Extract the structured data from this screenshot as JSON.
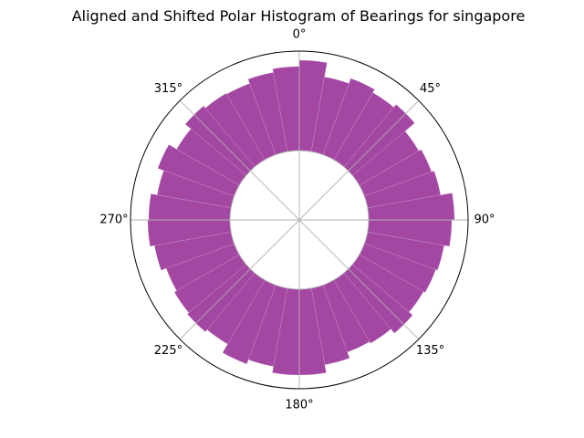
{
  "chart_data": {
    "type": "polar-bar",
    "title": "Aligned and Shifted Polar Histogram of Bearings for singapore",
    "angular_ticks": [
      {
        "deg": 0,
        "label": "0°"
      },
      {
        "deg": 45,
        "label": "45°"
      },
      {
        "deg": 90,
        "label": "90°"
      },
      {
        "deg": 135,
        "label": "135°"
      },
      {
        "deg": 180,
        "label": "180°"
      },
      {
        "deg": 225,
        "label": "225°"
      },
      {
        "deg": 270,
        "label": "270°"
      },
      {
        "deg": 315,
        "label": "315°"
      }
    ],
    "zero_location": "N",
    "direction": "clockwise",
    "bin_width_deg": 10,
    "grid": true,
    "bar_color": "#993399",
    "bins": [
      {
        "center": 5,
        "value": 1.0
      },
      {
        "center": 15,
        "value": 0.84
      },
      {
        "center": 25,
        "value": 0.9
      },
      {
        "center": 35,
        "value": 0.86
      },
      {
        "center": 45,
        "value": 0.9
      },
      {
        "center": 55,
        "value": 0.76
      },
      {
        "center": 65,
        "value": 0.79
      },
      {
        "center": 75,
        "value": 0.82
      },
      {
        "center": 85,
        "value": 0.95
      },
      {
        "center": 95,
        "value": 0.92
      },
      {
        "center": 105,
        "value": 0.86
      },
      {
        "center": 115,
        "value": 0.84
      },
      {
        "center": 125,
        "value": 0.82
      },
      {
        "center": 135,
        "value": 0.87
      },
      {
        "center": 145,
        "value": 0.81
      },
      {
        "center": 155,
        "value": 0.79
      },
      {
        "center": 165,
        "value": 0.86
      },
      {
        "center": 175,
        "value": 0.95
      },
      {
        "center": 185,
        "value": 0.95
      },
      {
        "center": 195,
        "value": 0.88
      },
      {
        "center": 205,
        "value": 0.93
      },
      {
        "center": 215,
        "value": 0.82
      },
      {
        "center": 225,
        "value": 0.85
      },
      {
        "center": 235,
        "value": 0.83
      },
      {
        "center": 245,
        "value": 0.8
      },
      {
        "center": 255,
        "value": 0.86
      },
      {
        "center": 265,
        "value": 0.91
      },
      {
        "center": 275,
        "value": 0.9
      },
      {
        "center": 285,
        "value": 0.83
      },
      {
        "center": 295,
        "value": 0.9
      },
      {
        "center": 305,
        "value": 0.8
      },
      {
        "center": 315,
        "value": 0.88
      },
      {
        "center": 325,
        "value": 0.85
      },
      {
        "center": 335,
        "value": 0.84
      },
      {
        "center": 345,
        "value": 0.89
      },
      {
        "center": 355,
        "value": 0.93
      }
    ]
  }
}
